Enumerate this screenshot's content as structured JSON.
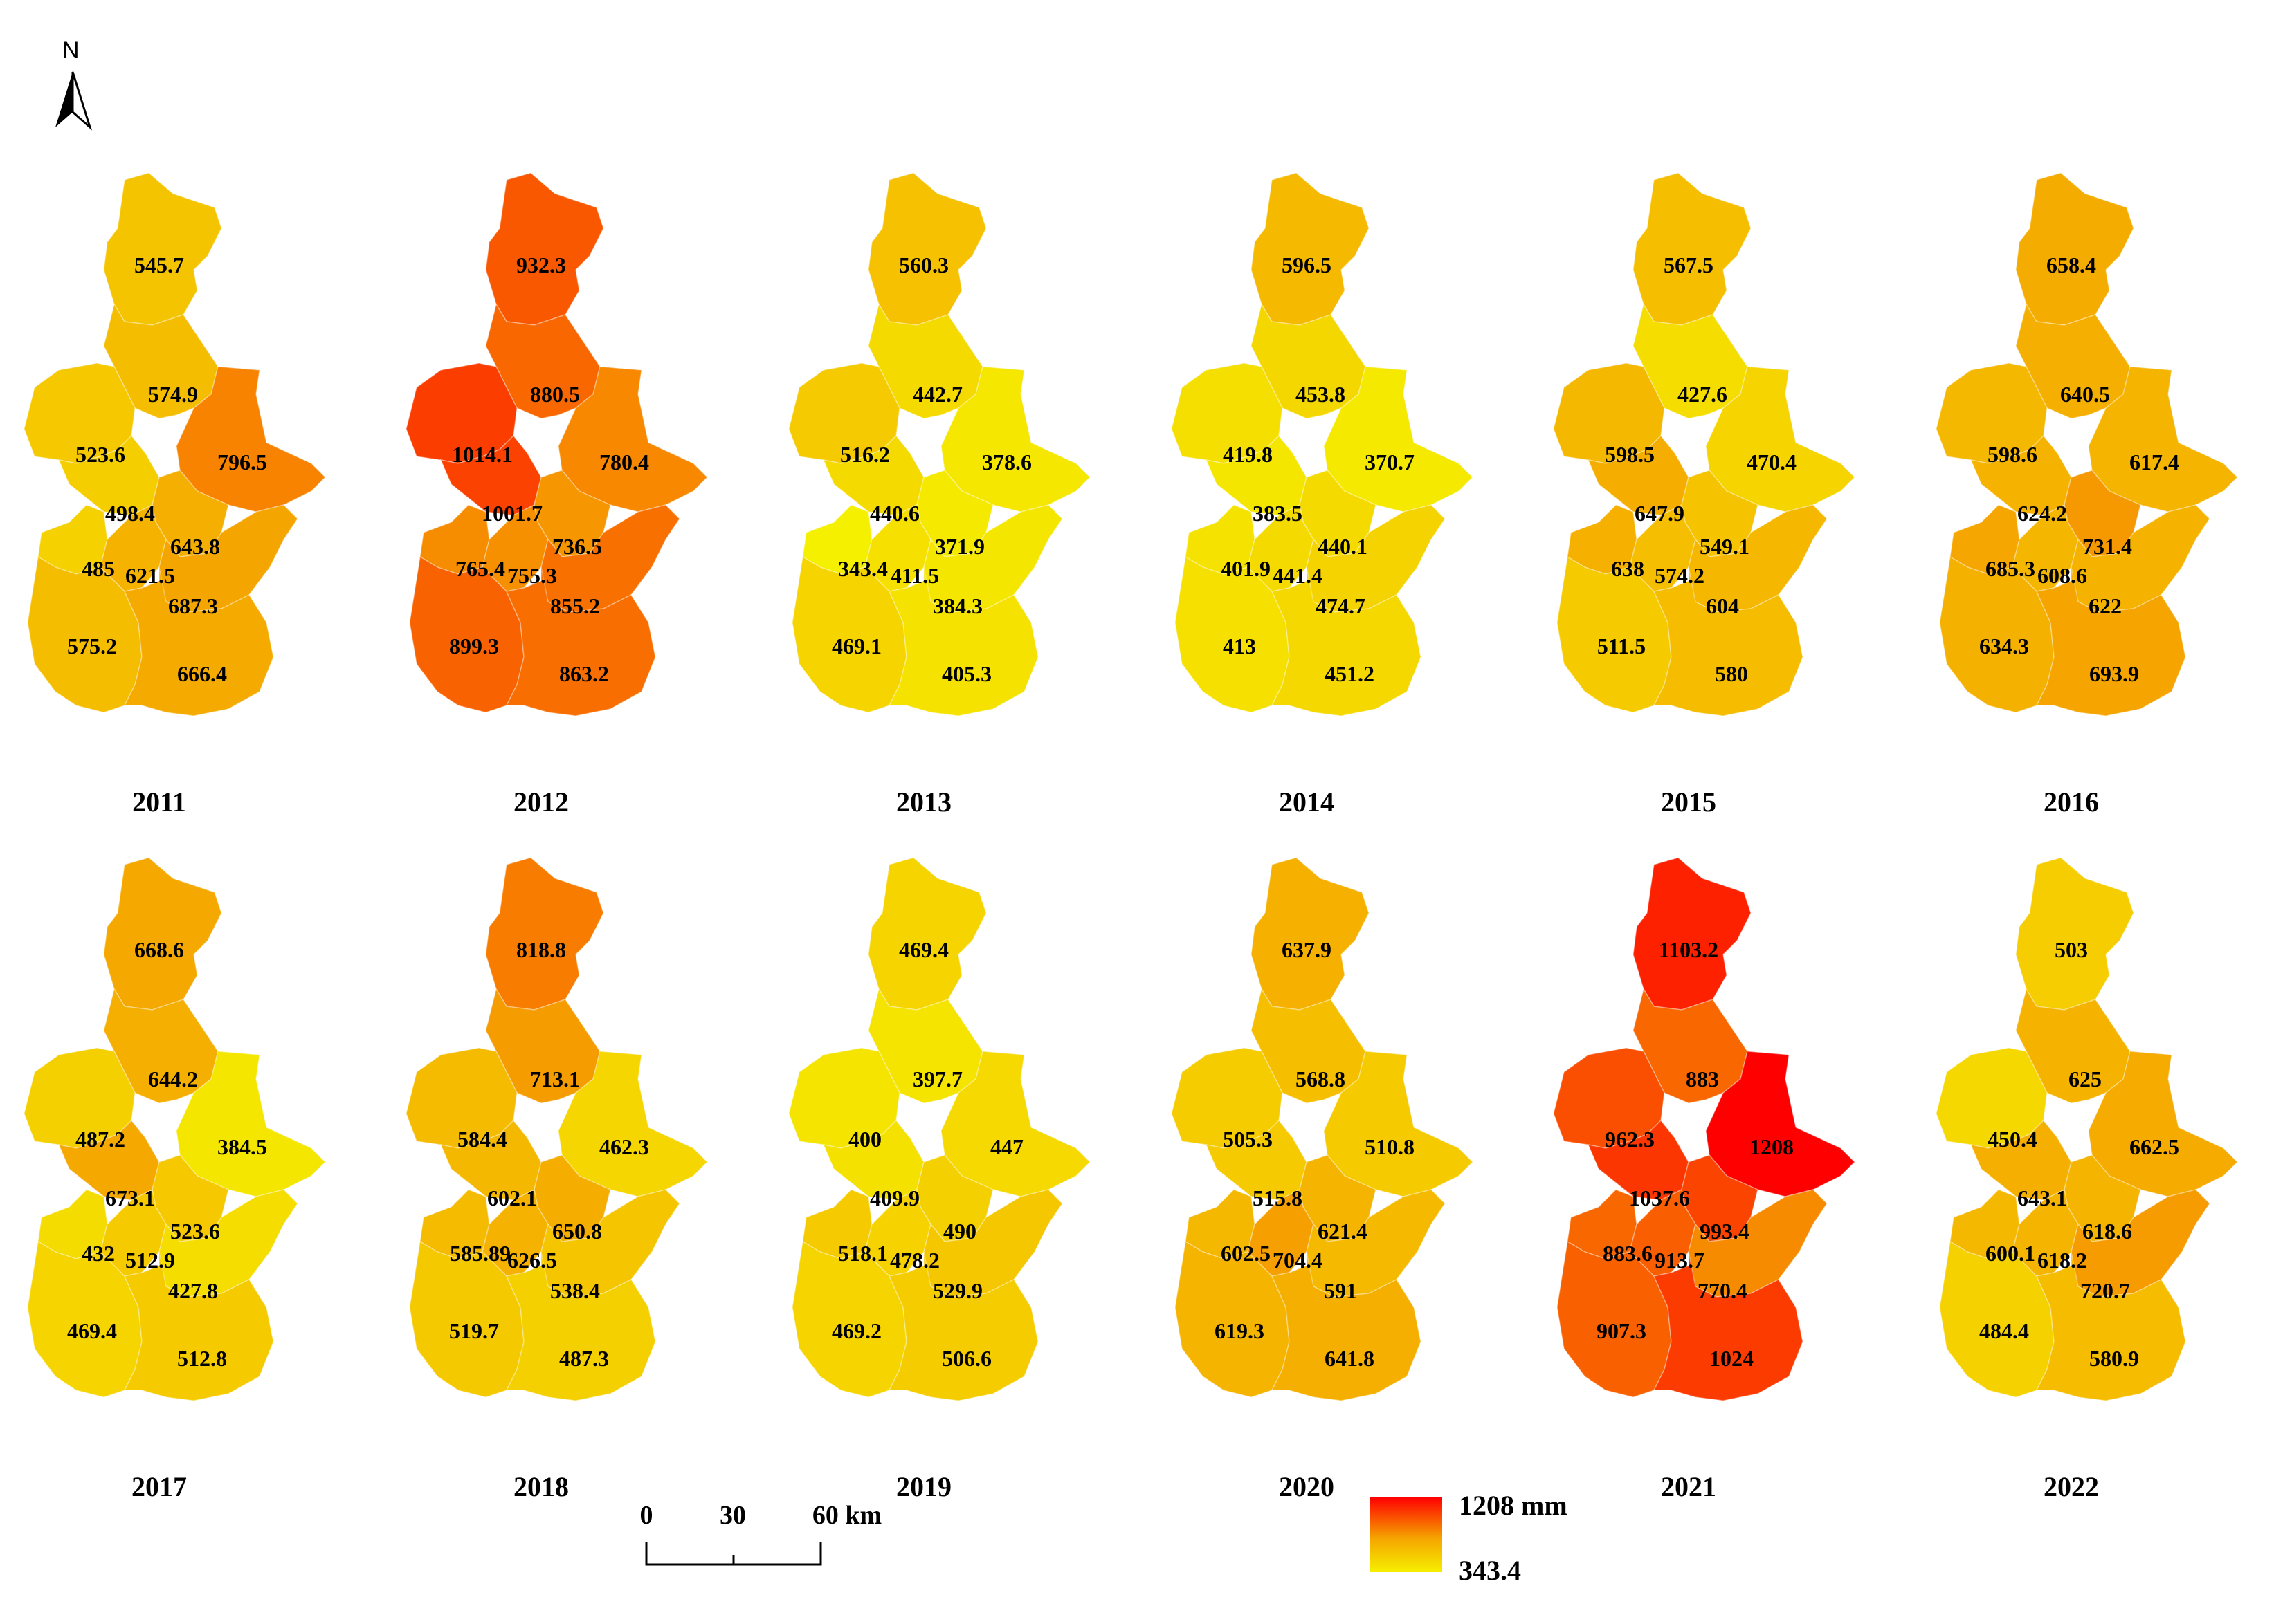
{
  "north": {
    "label": "N"
  },
  "scale": {
    "ticks": [
      "0",
      "30"
    ],
    "end_label": "60 km"
  },
  "legend": {
    "max_label": "1208 mm",
    "min_label": "343.4",
    "max_value": 1208,
    "min_value": 343.4,
    "color_high": "#ff0000",
    "color_mid": "#f5a500",
    "color_low": "#f5ef00"
  },
  "years": [
    {
      "year": "2011",
      "values": [
        "545.7",
        "574.9",
        "523.6",
        "796.5",
        "498.4",
        "643.8",
        "485",
        "621.5",
        "687.3",
        "575.2",
        "666.4"
      ]
    },
    {
      "year": "2012",
      "values": [
        "932.3",
        "880.5",
        "1014.1",
        "780.4",
        "1001.7",
        "736.5",
        "765.4",
        "755.3",
        "855.2",
        "899.3",
        "863.2"
      ]
    },
    {
      "year": "2013",
      "values": [
        "560.3",
        "442.7",
        "516.2",
        "378.6",
        "440.6",
        "371.9",
        "343.4",
        "411.5",
        "384.3",
        "469.1",
        "405.3"
      ]
    },
    {
      "year": "2014",
      "values": [
        "596.5",
        "453.8",
        "419.8",
        "370.7",
        "383.5",
        "440.1",
        "401.9",
        "441.4",
        "474.7",
        "413",
        "451.2"
      ]
    },
    {
      "year": "2015",
      "values": [
        "567.5",
        "427.6",
        "598.5",
        "470.4",
        "647.9",
        "549.1",
        "638",
        "574.2",
        "604",
        "511.5",
        "580"
      ]
    },
    {
      "year": "2016",
      "values": [
        "658.4",
        "640.5",
        "598.6",
        "617.4",
        "624.2",
        "731.4",
        "685.3",
        "608.6",
        "622",
        "634.3",
        "693.9"
      ]
    },
    {
      "year": "2017",
      "values": [
        "668.6",
        "644.2",
        "487.2",
        "384.5",
        "673.1",
        "523.6",
        "432",
        "512.9",
        "427.8",
        "469.4",
        "512.8"
      ]
    },
    {
      "year": "2018",
      "values": [
        "818.8",
        "713.1",
        "584.4",
        "462.3",
        "602.1",
        "650.8",
        "585.89",
        "626.5",
        "538.4",
        "519.7",
        "487.3"
      ]
    },
    {
      "year": "2019",
      "values": [
        "469.4",
        "397.7",
        "400",
        "447",
        "409.9",
        "490",
        "518.1",
        "478.2",
        "529.9",
        "469.2",
        "506.6"
      ]
    },
    {
      "year": "2020",
      "values": [
        "637.9",
        "568.8",
        "505.3",
        "510.8",
        "515.8",
        "621.4",
        "602.5",
        "704.4",
        "591",
        "619.3",
        "641.8"
      ]
    },
    {
      "year": "2021",
      "values": [
        "1103.2",
        "883",
        "962.3",
        "1208",
        "1037.6",
        "993.4",
        "883.6",
        "913.7",
        "770.4",
        "907.3",
        "1024"
      ]
    },
    {
      "year": "2022",
      "values": [
        "503",
        "625",
        "450.4",
        "662.5",
        "643.1",
        "618.6",
        "600.1",
        "618.2",
        "720.7",
        "484.4",
        "580.9"
      ]
    }
  ]
}
